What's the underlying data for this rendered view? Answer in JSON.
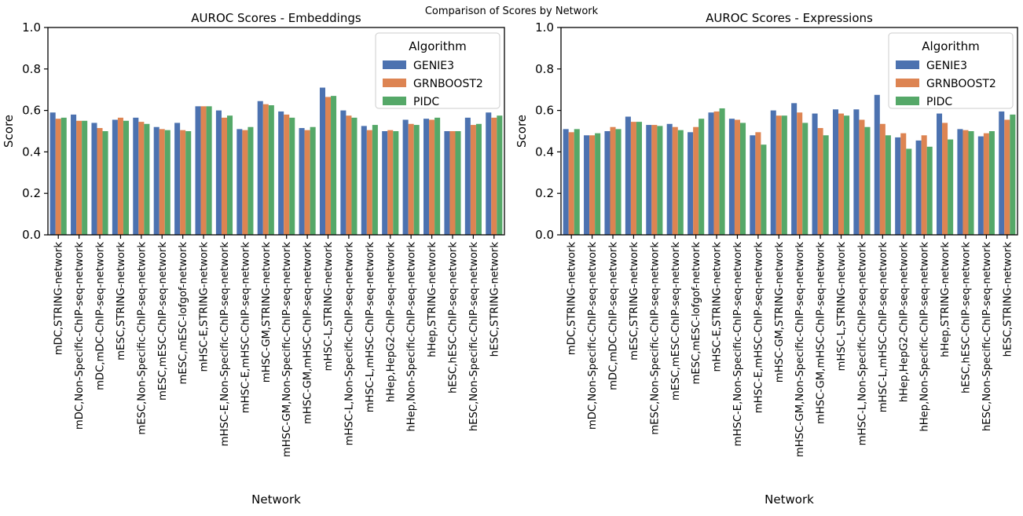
{
  "figure": {
    "suptitle": "Comparison of Scores by Network"
  },
  "chart_data": [
    {
      "type": "bar",
      "title": "AUROC Scores - Embeddings",
      "xlabel": "Network",
      "ylabel": "Score",
      "ylim": [
        0,
        1.0
      ],
      "yticks": [
        "0.0",
        "0.2",
        "0.4",
        "0.6",
        "0.8",
        "1.0"
      ],
      "legend": {
        "title": "Algorithm",
        "placement": "top-right"
      },
      "categories": [
        "mDC,STRING-network",
        "mDC,Non-Specific-ChIP-seq-network",
        "mDC,mDC-ChIP-seq-network",
        "mESC,STRING-network",
        "mESC,Non-Specific-ChIP-seq-network",
        "mESC,mESC-ChIP-seq-network",
        "mESC,mESC-lofgof-network",
        "mHSC-E,STRING-network",
        "mHSC-E,Non-Specific-ChIP-seq-network",
        "mHSC-E,mHSC-ChIP-seq-network",
        "mHSC-GM,STRING-network",
        "mHSC-GM,Non-Specific-ChIP-seq-network",
        "mHSC-GM,mHSC-ChIP-seq-network",
        "mHSC-L,STRING-network",
        "mHSC-L,Non-Specific-ChIP-seq-network",
        "mHSC-L,mHSC-ChIP-seq-network",
        "hHep,HepG2-ChIP-seq-network",
        "hHep,Non-Specific-ChIP-seq-network",
        "hHep,STRING-network",
        "hESC,hESC-ChIP-seq-network",
        "hESC,Non-Specific-ChIP-seq-network",
        "hESC,STRING-network"
      ],
      "series": [
        {
          "name": "GENIE3",
          "color": "#4c72b0",
          "values": [
            0.59,
            0.58,
            0.54,
            0.555,
            0.565,
            0.52,
            0.54,
            0.62,
            0.6,
            0.51,
            0.645,
            0.595,
            0.515,
            0.71,
            0.6,
            0.525,
            0.5,
            0.555,
            0.56,
            0.5,
            0.565,
            0.59
          ]
        },
        {
          "name": "GRNBOOST2",
          "color": "#dd8452",
          "values": [
            0.56,
            0.55,
            0.515,
            0.565,
            0.545,
            0.51,
            0.505,
            0.62,
            0.565,
            0.505,
            0.63,
            0.58,
            0.505,
            0.665,
            0.575,
            0.505,
            0.505,
            0.535,
            0.555,
            0.5,
            0.53,
            0.565
          ]
        },
        {
          "name": "PIDC",
          "color": "#55a868",
          "values": [
            0.565,
            0.55,
            0.5,
            0.55,
            0.535,
            0.505,
            0.5,
            0.62,
            0.575,
            0.52,
            0.625,
            0.565,
            0.52,
            0.67,
            0.565,
            0.53,
            0.5,
            0.53,
            0.565,
            0.5,
            0.535,
            0.575
          ]
        }
      ]
    },
    {
      "type": "bar",
      "title": "AUROC Scores - Expressions",
      "xlabel": "Network",
      "ylabel": "Score",
      "ylim": [
        0,
        1.0
      ],
      "yticks": [
        "0.0",
        "0.2",
        "0.4",
        "0.6",
        "0.8",
        "1.0"
      ],
      "legend": {
        "title": "Algorithm",
        "placement": "top-right"
      },
      "categories": [
        "mDC,STRING-network",
        "mDC,Non-Specific-ChIP-seq-network",
        "mDC,mDC-ChIP-seq-network",
        "mESC,STRING-network",
        "mESC,Non-Specific-ChIP-seq-network",
        "mESC,mESC-ChIP-seq-network",
        "mESC,mESC-lofgof-network",
        "mHSC-E,STRING-network",
        "mHSC-E,Non-Specific-ChIP-seq-network",
        "mHSC-E,mHSC-ChIP-seq-network",
        "mHSC-GM,STRING-network",
        "mHSC-GM,Non-Specific-ChIP-seq-network",
        "mHSC-GM,mHSC-ChIP-seq-network",
        "mHSC-L,STRING-network",
        "mHSC-L,Non-Specific-ChIP-seq-network",
        "mHSC-L,mHSC-ChIP-seq-network",
        "hHep,HepG2-ChIP-seq-network",
        "hHep,Non-Specific-ChIP-seq-network",
        "hHep,STRING-network",
        "hESC,hESC-ChIP-seq-network",
        "hESC,Non-Specific-ChIP-seq-network",
        "hESC,STRING-network"
      ],
      "series": [
        {
          "name": "GENIE3",
          "color": "#4c72b0",
          "values": [
            0.51,
            0.48,
            0.5,
            0.57,
            0.53,
            0.535,
            0.495,
            0.59,
            0.56,
            0.48,
            0.6,
            0.635,
            0.585,
            0.605,
            0.605,
            0.675,
            0.47,
            0.455,
            0.585,
            0.51,
            0.475,
            0.595
          ]
        },
        {
          "name": "GRNBOOST2",
          "color": "#dd8452",
          "values": [
            0.495,
            0.48,
            0.52,
            0.545,
            0.53,
            0.52,
            0.52,
            0.595,
            0.555,
            0.495,
            0.575,
            0.59,
            0.515,
            0.585,
            0.555,
            0.535,
            0.49,
            0.48,
            0.54,
            0.505,
            0.49,
            0.555
          ]
        },
        {
          "name": "PIDC",
          "color": "#55a868",
          "values": [
            0.51,
            0.49,
            0.51,
            0.545,
            0.525,
            0.505,
            0.56,
            0.61,
            0.54,
            0.435,
            0.575,
            0.54,
            0.48,
            0.575,
            0.52,
            0.48,
            0.415,
            0.425,
            0.46,
            0.5,
            0.5,
            0.58
          ]
        }
      ]
    }
  ]
}
